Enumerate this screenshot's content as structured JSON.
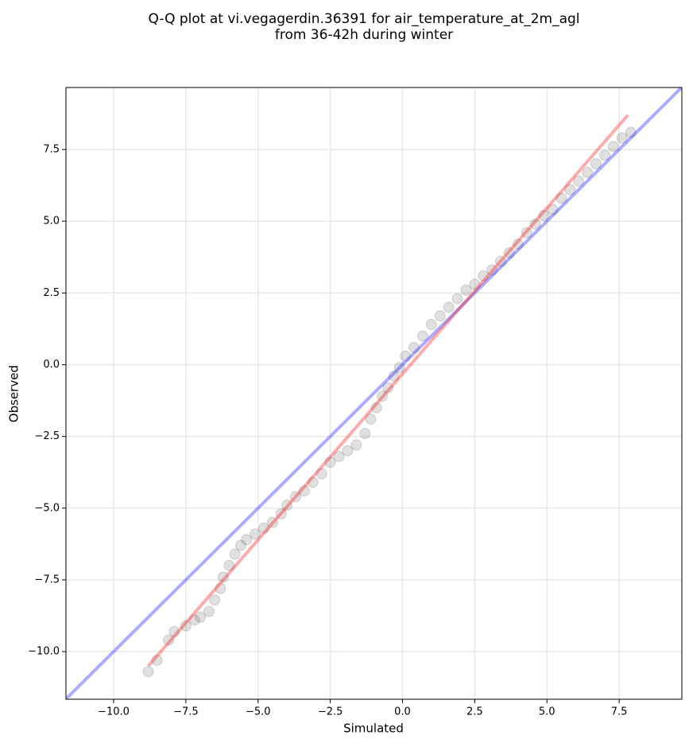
{
  "chart_data": {
    "type": "scatter",
    "title": [
      "Q-Q plot at vi.vegagerdin.36391 for air_temperature_at_2m_agl",
      "from 36-42h during winter"
    ],
    "xlabel": "Simulated",
    "ylabel": "Observed",
    "xlim": [
      -11.65,
      9.67
    ],
    "ylim": [
      -11.66,
      9.66
    ],
    "xticks": [
      {
        "value": -10,
        "label": "−10.0"
      },
      {
        "value": -7.5,
        "label": "−7.5"
      },
      {
        "value": -5,
        "label": "−5.0"
      },
      {
        "value": -2.5,
        "label": "−2.5"
      },
      {
        "value": 0,
        "label": "0.0"
      },
      2.5,
      {
        "value": 5,
        "label": "5.0"
      },
      7.5
    ],
    "yticks": [
      {
        "value": -10,
        "label": "−10.0"
      },
      {
        "value": -7.5,
        "label": "−7.5"
      },
      {
        "value": -5,
        "label": "−5.0"
      },
      {
        "value": -2.5,
        "label": "−2.5"
      },
      {
        "value": 0,
        "label": "0.0"
      },
      2.5,
      {
        "value": 5,
        "label": "5.0"
      },
      7.5
    ],
    "grid": true,
    "color": "#000000",
    "x": [
      -8.8,
      -8.5,
      -8.1,
      -7.9,
      -7.5,
      -7.2,
      -7.0,
      -6.7,
      -6.5,
      -6.3,
      -6.2,
      -6.0,
      -5.8,
      -5.6,
      -5.4,
      -5.1,
      -4.8,
      -4.5,
      -4.2,
      -4.0,
      -3.7,
      -3.4,
      -3.1,
      -2.8,
      -2.5,
      -2.2,
      -1.9,
      -1.6,
      -1.3,
      -1.1,
      -0.9,
      -0.7,
      -0.5,
      -0.3,
      -0.1,
      0.1,
      0.4,
      0.7,
      1.0,
      1.3,
      1.6,
      1.9,
      2.2,
      2.5,
      2.8,
      3.1,
      3.4,
      3.7,
      4.0,
      4.3,
      4.6,
      4.9,
      5.2,
      5.5,
      5.8,
      6.1,
      6.4,
      6.7,
      7.0,
      7.3,
      7.6,
      7.9
    ],
    "values": [
      -10.7,
      -10.3,
      -9.6,
      -9.3,
      -9.1,
      -8.9,
      -8.8,
      -8.6,
      -8.2,
      -7.8,
      -7.4,
      -7.0,
      -6.6,
      -6.3,
      -6.1,
      -5.9,
      -5.7,
      -5.5,
      -5.2,
      -4.9,
      -4.6,
      -4.4,
      -4.1,
      -3.8,
      -3.4,
      -3.2,
      -3.0,
      -2.8,
      -2.4,
      -1.9,
      -1.5,
      -1.1,
      -0.8,
      -0.4,
      -0.1,
      0.3,
      0.6,
      1.0,
      1.4,
      1.7,
      2.0,
      2.3,
      2.6,
      2.8,
      3.1,
      3.3,
      3.6,
      3.9,
      4.2,
      4.6,
      4.9,
      5.2,
      5.4,
      5.8,
      6.1,
      6.4,
      6.7,
      7.0,
      7.3,
      7.6,
      7.9,
      8.1
    ],
    "lines": [
      {
        "color": "#0000ff",
        "x": [
          -11.65,
          9.67
        ],
        "values": [
          -11.65,
          9.67
        ]
      },
      {
        "color": "#ff0000",
        "x": [
          -8.8,
          7.8
        ],
        "values": [
          -10.5,
          8.7
        ]
      }
    ]
  }
}
